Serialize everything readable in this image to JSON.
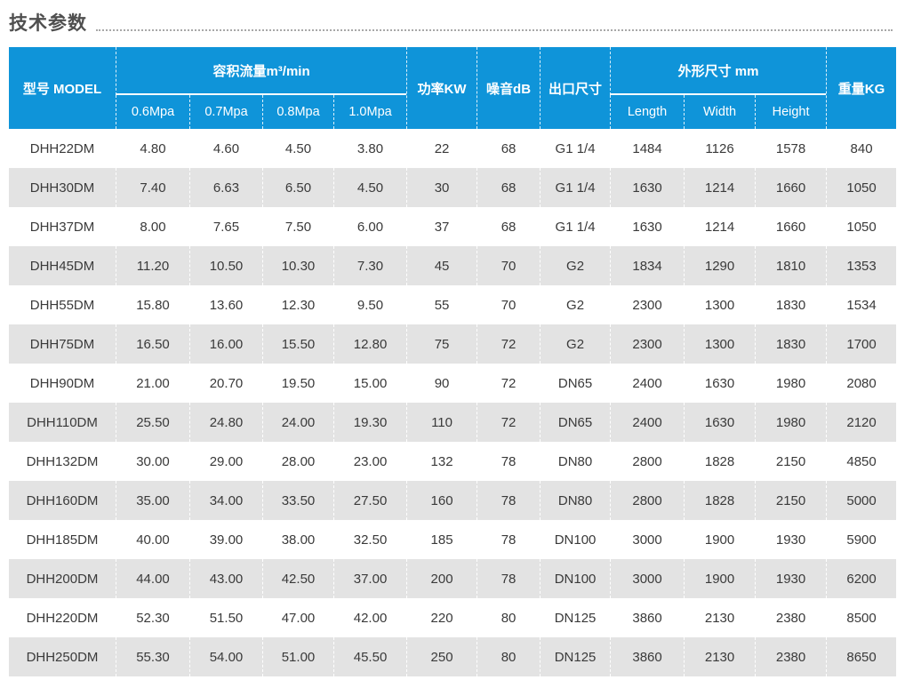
{
  "section": {
    "title": "技术参数"
  },
  "colors": {
    "header_bg": "#0f94d9",
    "header_text": "#ffffff",
    "row_alt_bg": "#e3e3e3",
    "body_text": "#3a3a3a",
    "title_text": "#4f4f4f",
    "dotted_line": "#a8a8a8"
  },
  "table": {
    "header": {
      "model": "型号 MODEL",
      "flow_group": "容积流量m³/min",
      "flow_subcols": [
        "0.6Mpa",
        "0.7Mpa",
        "0.8Mpa",
        "1.0Mpa"
      ],
      "power": "功率KW",
      "noise": "噪音dB",
      "outlet": "出口尺寸",
      "dims_group": "外形尺寸 mm",
      "dims_subcols": [
        "Length",
        "Width",
        "Height"
      ],
      "weight": "重量KG"
    },
    "rows": [
      [
        "DHH22DM",
        "4.80",
        "4.60",
        "4.50",
        "3.80",
        "22",
        "68",
        "G1 1/4",
        "1484",
        "1126",
        "1578",
        "840"
      ],
      [
        "DHH30DM",
        "7.40",
        "6.63",
        "6.50",
        "4.50",
        "30",
        "68",
        "G1 1/4",
        "1630",
        "1214",
        "1660",
        "1050"
      ],
      [
        "DHH37DM",
        "8.00",
        "7.65",
        "7.50",
        "6.00",
        "37",
        "68",
        "G1 1/4",
        "1630",
        "1214",
        "1660",
        "1050"
      ],
      [
        "DHH45DM",
        "11.20",
        "10.50",
        "10.30",
        "7.30",
        "45",
        "70",
        "G2",
        "1834",
        "1290",
        "1810",
        "1353"
      ],
      [
        "DHH55DM",
        "15.80",
        "13.60",
        "12.30",
        "9.50",
        "55",
        "70",
        "G2",
        "2300",
        "1300",
        "1830",
        "1534"
      ],
      [
        "DHH75DM",
        "16.50",
        "16.00",
        "15.50",
        "12.80",
        "75",
        "72",
        "G2",
        "2300",
        "1300",
        "1830",
        "1700"
      ],
      [
        "DHH90DM",
        "21.00",
        "20.70",
        "19.50",
        "15.00",
        "90",
        "72",
        "DN65",
        "2400",
        "1630",
        "1980",
        "2080"
      ],
      [
        "DHH110DM",
        "25.50",
        "24.80",
        "24.00",
        "19.30",
        "110",
        "72",
        "DN65",
        "2400",
        "1630",
        "1980",
        "2120"
      ],
      [
        "DHH132DM",
        "30.00",
        "29.00",
        "28.00",
        "23.00",
        "132",
        "78",
        "DN80",
        "2800",
        "1828",
        "2150",
        "4850"
      ],
      [
        "DHH160DM",
        "35.00",
        "34.00",
        "33.50",
        "27.50",
        "160",
        "78",
        "DN80",
        "2800",
        "1828",
        "2150",
        "5000"
      ],
      [
        "DHH185DM",
        "40.00",
        "39.00",
        "38.00",
        "32.50",
        "185",
        "78",
        "DN100",
        "3000",
        "1900",
        "1930",
        "5900"
      ],
      [
        "DHH200DM",
        "44.00",
        "43.00",
        "42.50",
        "37.00",
        "200",
        "78",
        "DN100",
        "3000",
        "1900",
        "1930",
        "6200"
      ],
      [
        "DHH220DM",
        "52.30",
        "51.50",
        "47.00",
        "42.00",
        "220",
        "80",
        "DN125",
        "3860",
        "2130",
        "2380",
        "8500"
      ],
      [
        "DHH250DM",
        "55.30",
        "54.00",
        "51.00",
        "45.50",
        "250",
        "80",
        "DN125",
        "3860",
        "2130",
        "2380",
        "8650"
      ]
    ]
  }
}
